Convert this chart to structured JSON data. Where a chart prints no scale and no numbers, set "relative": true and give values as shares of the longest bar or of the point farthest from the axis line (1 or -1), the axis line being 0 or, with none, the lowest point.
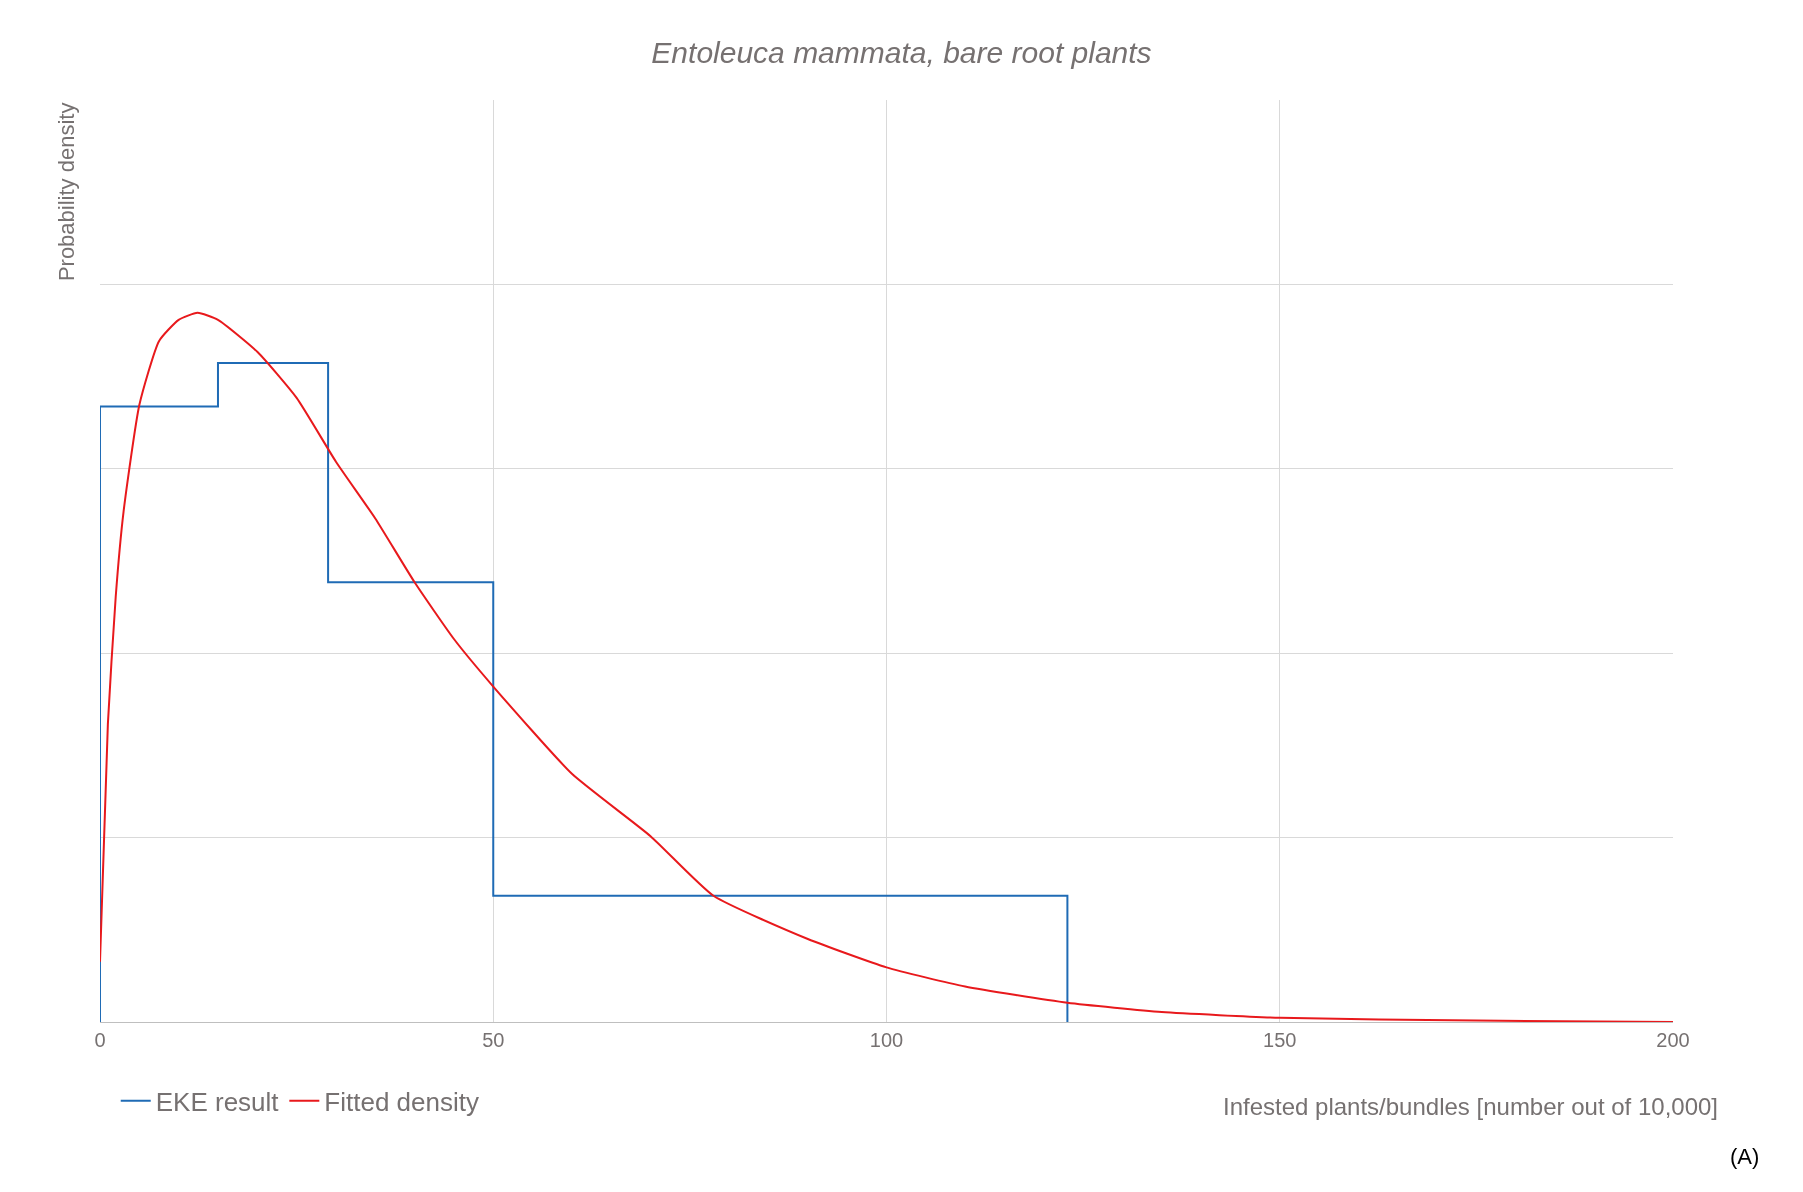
{
  "chart_data": {
    "type": "line",
    "title": "Entoleuca mammata, bare root plants",
    "xlabel": "Infested plants/bundles [number out of 10,000]",
    "ylabel": "Probability density",
    "relative": true,
    "xlim": [
      0,
      200
    ],
    "xticks": [
      0,
      50,
      100,
      150,
      200
    ],
    "grid": true,
    "legend": "bottom left",
    "annotations": [
      "(A)"
    ],
    "series": [
      {
        "name": "EKE result",
        "type": "step",
        "color": "#1f6bb5",
        "x": [
          0,
          0,
          15,
          29,
          50,
          123,
          123
        ],
        "values": [
          0,
          0.868,
          0.929,
          0.62,
          0.178,
          0.178,
          0
        ]
      },
      {
        "name": "Fitted density",
        "color": "#e8191c",
        "x": [
          0,
          1,
          2,
          3,
          5,
          7.5,
          10,
          12.4,
          15,
          20,
          25,
          30,
          35,
          40,
          45,
          50,
          60,
          70,
          78,
          90,
          100,
          110,
          123,
          135,
          150,
          175,
          200
        ],
        "values": [
          0.085,
          0.42,
          0.6,
          0.72,
          0.87,
          0.96,
          0.99,
          1.0,
          0.99,
          0.945,
          0.88,
          0.79,
          0.71,
          0.62,
          0.54,
          0.473,
          0.35,
          0.262,
          0.178,
          0.117,
          0.077,
          0.05,
          0.027,
          0.014,
          0.006,
          0.002,
          0
        ]
      }
    ]
  }
}
